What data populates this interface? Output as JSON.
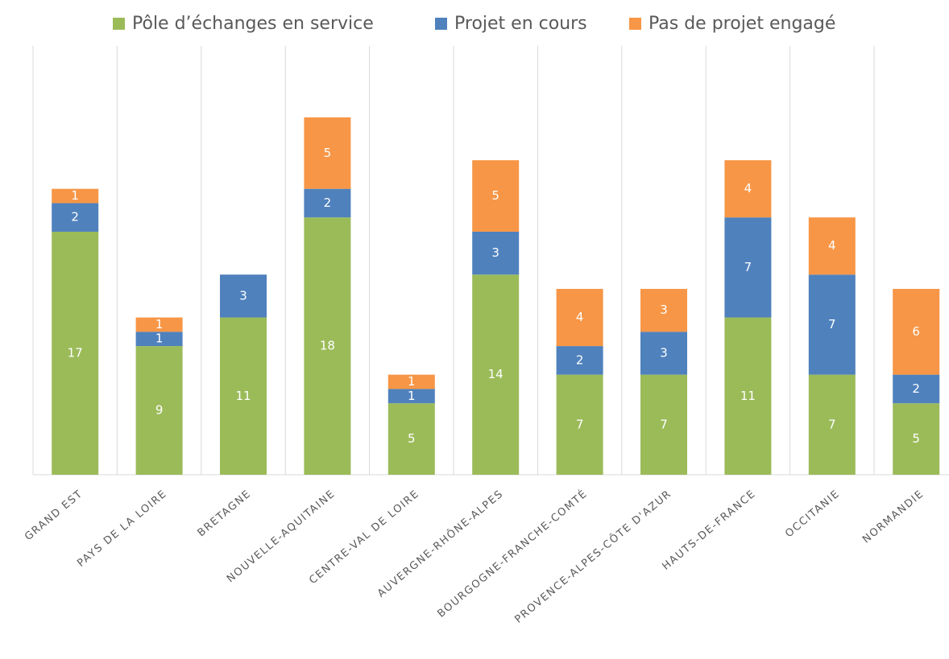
{
  "chart_data": {
    "type": "stacked_bar",
    "categories": [
      "GRAND EST",
      "PAYS DE LA LOIRE",
      "BRETAGNE",
      "NOUVELLE-AQUITAINE",
      "CENTRE-VAL DE LOIRE",
      "AUVERGNE-RHÔNE-ALPES",
      "BOURGOGNE-FRANCHE-COMTÉ",
      "PROVENCE-ALPES-CÔTE D'AZUR",
      "HAUTS-DE-FRANCE",
      "OCCITANIE",
      "NORMANDIE"
    ],
    "series": [
      {
        "name": "Pôle d’échanges en service",
        "color": "#9bbb59",
        "values": [
          17,
          9,
          11,
          18,
          5,
          14,
          7,
          7,
          11,
          7,
          5
        ]
      },
      {
        "name": "Projet en cours",
        "color": "#4f81bd",
        "values": [
          2,
          1,
          3,
          2,
          1,
          3,
          2,
          3,
          7,
          7,
          2
        ]
      },
      {
        "name": "Pas de projet engagé",
        "color": "#f79646",
        "values": [
          1,
          1,
          null,
          5,
          1,
          5,
          4,
          3,
          4,
          4,
          6
        ]
      }
    ],
    "ylim": [
      0,
      30
    ],
    "legend": "top"
  }
}
